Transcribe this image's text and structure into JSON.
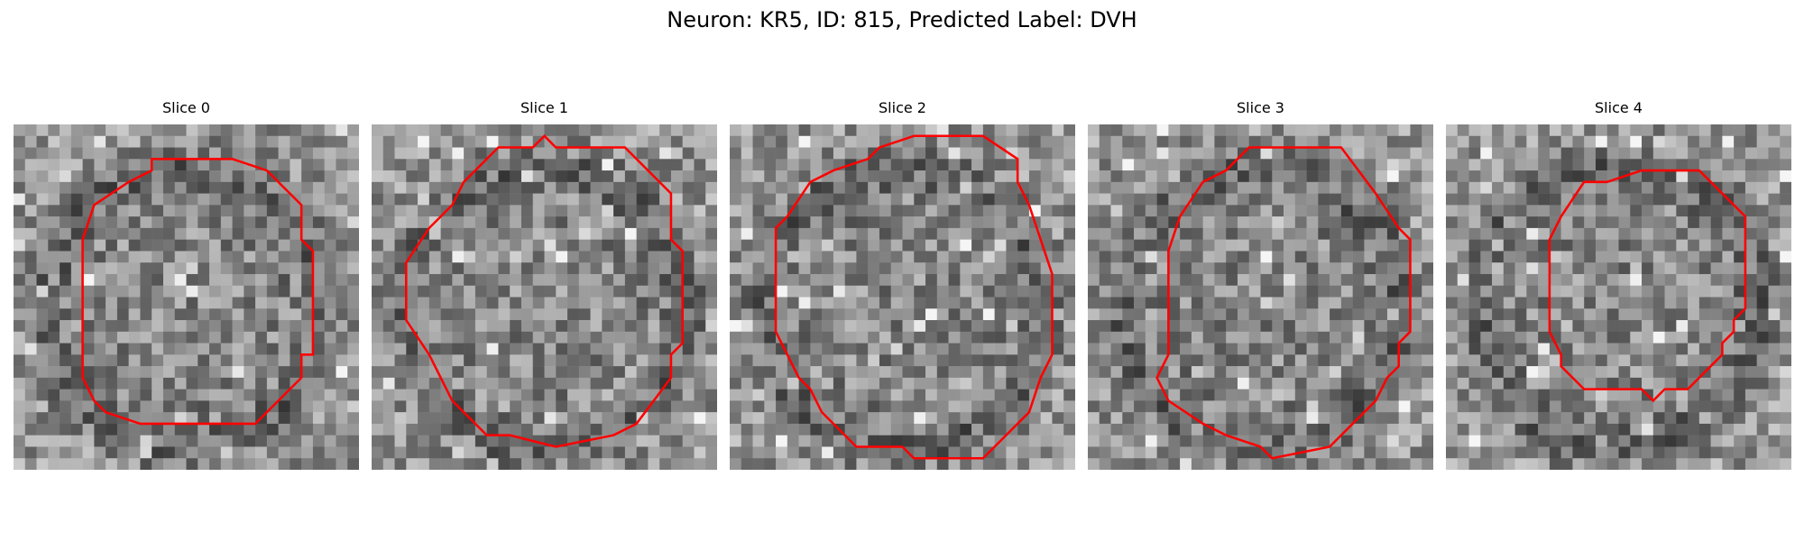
{
  "figure": {
    "title": "Neuron: KR5, ID: 815, Predicted Label: DVH"
  },
  "colors": {
    "contour": "#ff0000",
    "background": "#ffffff"
  },
  "image_grid": {
    "rows": 30,
    "cols": 30,
    "colormap": "gray"
  },
  "slices": [
    {
      "label": "Slice 0",
      "contour": [
        [
          12,
          3
        ],
        [
          19,
          3
        ],
        [
          22,
          4
        ],
        [
          25,
          7
        ],
        [
          25,
          10
        ],
        [
          26,
          11
        ],
        [
          26,
          20
        ],
        [
          25,
          20
        ],
        [
          25,
          22
        ],
        [
          23,
          24
        ],
        [
          21,
          26
        ],
        [
          11,
          26
        ],
        [
          8,
          25
        ],
        [
          7,
          24
        ],
        [
          6,
          22
        ],
        [
          6,
          19
        ],
        [
          6,
          18
        ],
        [
          6,
          17
        ],
        [
          6,
          16
        ],
        [
          6,
          10
        ],
        [
          7,
          7
        ],
        [
          10,
          5
        ],
        [
          12,
          4
        ]
      ]
    },
    {
      "label": "Slice 1",
      "contour": [
        [
          11,
          2
        ],
        [
          14,
          2
        ],
        [
          15,
          1
        ],
        [
          16,
          2
        ],
        [
          22,
          2
        ],
        [
          26,
          6
        ],
        [
          26,
          10
        ],
        [
          27,
          11
        ],
        [
          27,
          19
        ],
        [
          26,
          20
        ],
        [
          26,
          22
        ],
        [
          23,
          26
        ],
        [
          21,
          27
        ],
        [
          16,
          28
        ],
        [
          12,
          27
        ],
        [
          10,
          27
        ],
        [
          7,
          24
        ],
        [
          6,
          22
        ],
        [
          5,
          20
        ],
        [
          3,
          17
        ],
        [
          3,
          12
        ],
        [
          5,
          9
        ],
        [
          7,
          7
        ],
        [
          8,
          5
        ],
        [
          10,
          3
        ]
      ]
    },
    {
      "label": "Slice 2",
      "contour": [
        [
          13,
          2
        ],
        [
          16,
          1
        ],
        [
          22,
          1
        ],
        [
          25,
          3
        ],
        [
          25,
          5
        ],
        [
          26,
          7
        ],
        [
          27,
          10
        ],
        [
          28,
          13
        ],
        [
          28,
          20
        ],
        [
          27,
          22
        ],
        [
          26,
          25
        ],
        [
          23,
          28
        ],
        [
          22,
          29
        ],
        [
          16,
          29
        ],
        [
          15,
          28
        ],
        [
          11,
          28
        ],
        [
          8,
          25
        ],
        [
          7,
          23
        ],
        [
          6,
          22
        ],
        [
          5,
          20
        ],
        [
          4,
          18
        ],
        [
          4,
          9
        ],
        [
          5,
          8
        ],
        [
          7,
          5
        ],
        [
          9,
          4
        ],
        [
          12,
          3
        ]
      ]
    },
    {
      "label": "Slice 3",
      "contour": [
        [
          14,
          2
        ],
        [
          16,
          2
        ],
        [
          22,
          2
        ],
        [
          25,
          6
        ],
        [
          27,
          9
        ],
        [
          28,
          10
        ],
        [
          28,
          18
        ],
        [
          27,
          19
        ],
        [
          27,
          21
        ],
        [
          26,
          22
        ],
        [
          25,
          24
        ],
        [
          23,
          26
        ],
        [
          21,
          28
        ],
        [
          16,
          29
        ],
        [
          15,
          28
        ],
        [
          12,
          27
        ],
        [
          10,
          26
        ],
        [
          7,
          24
        ],
        [
          6,
          22
        ],
        [
          7,
          20
        ],
        [
          7,
          17
        ],
        [
          7,
          11
        ],
        [
          8,
          8
        ],
        [
          10,
          5
        ],
        [
          12,
          4
        ]
      ]
    },
    {
      "label": "Slice 4",
      "contour": [
        [
          17,
          4
        ],
        [
          22,
          4
        ],
        [
          26,
          8
        ],
        [
          26,
          16
        ],
        [
          25,
          17
        ],
        [
          25,
          18
        ],
        [
          24,
          19
        ],
        [
          24,
          20
        ],
        [
          22,
          22
        ],
        [
          21,
          23
        ],
        [
          19,
          23
        ],
        [
          18,
          24
        ],
        [
          17,
          23
        ],
        [
          12,
          23
        ],
        [
          10,
          21
        ],
        [
          10,
          20
        ],
        [
          9,
          18
        ],
        [
          9,
          10
        ],
        [
          10,
          8
        ],
        [
          12,
          5
        ],
        [
          14,
          5
        ]
      ]
    }
  ]
}
